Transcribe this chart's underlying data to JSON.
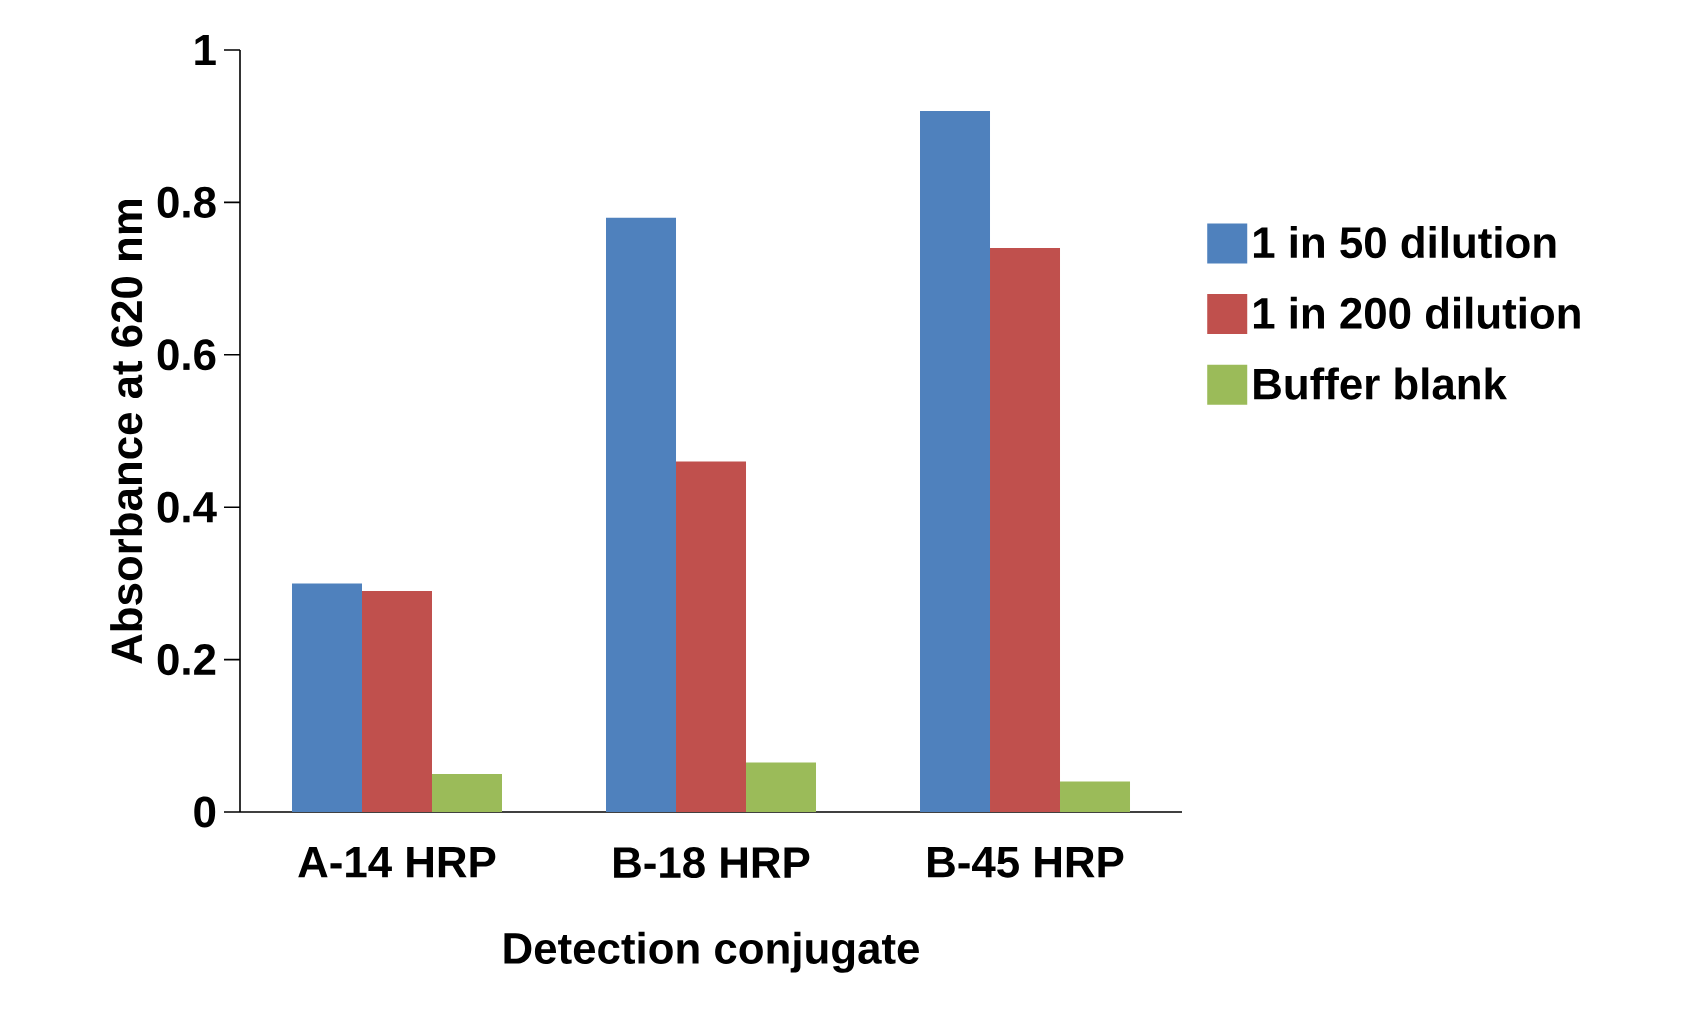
{
  "chart_data": {
    "type": "bar",
    "xlabel": "Detection conjugate",
    "ylabel": "Absorbance at 620 nm",
    "categories": [
      "A-14 HRP",
      "B-18 HRP",
      "B-45 HRP"
    ],
    "series": [
      {
        "name": "1 in 50 dilution",
        "color": "#4f81bd",
        "values": [
          0.3,
          0.78,
          0.92
        ]
      },
      {
        "name": "1 in 200 dilution",
        "color": "#c0504d",
        "values": [
          0.29,
          0.46,
          0.74
        ]
      },
      {
        "name": "Buffer blank",
        "color": "#9bbb59",
        "values": [
          0.05,
          0.065,
          0.04
        ]
      }
    ],
    "ylim": [
      0,
      1
    ],
    "yticks": [
      0,
      0.2,
      0.4,
      0.6,
      0.8,
      1
    ],
    "grid": false,
    "legend": "right"
  }
}
